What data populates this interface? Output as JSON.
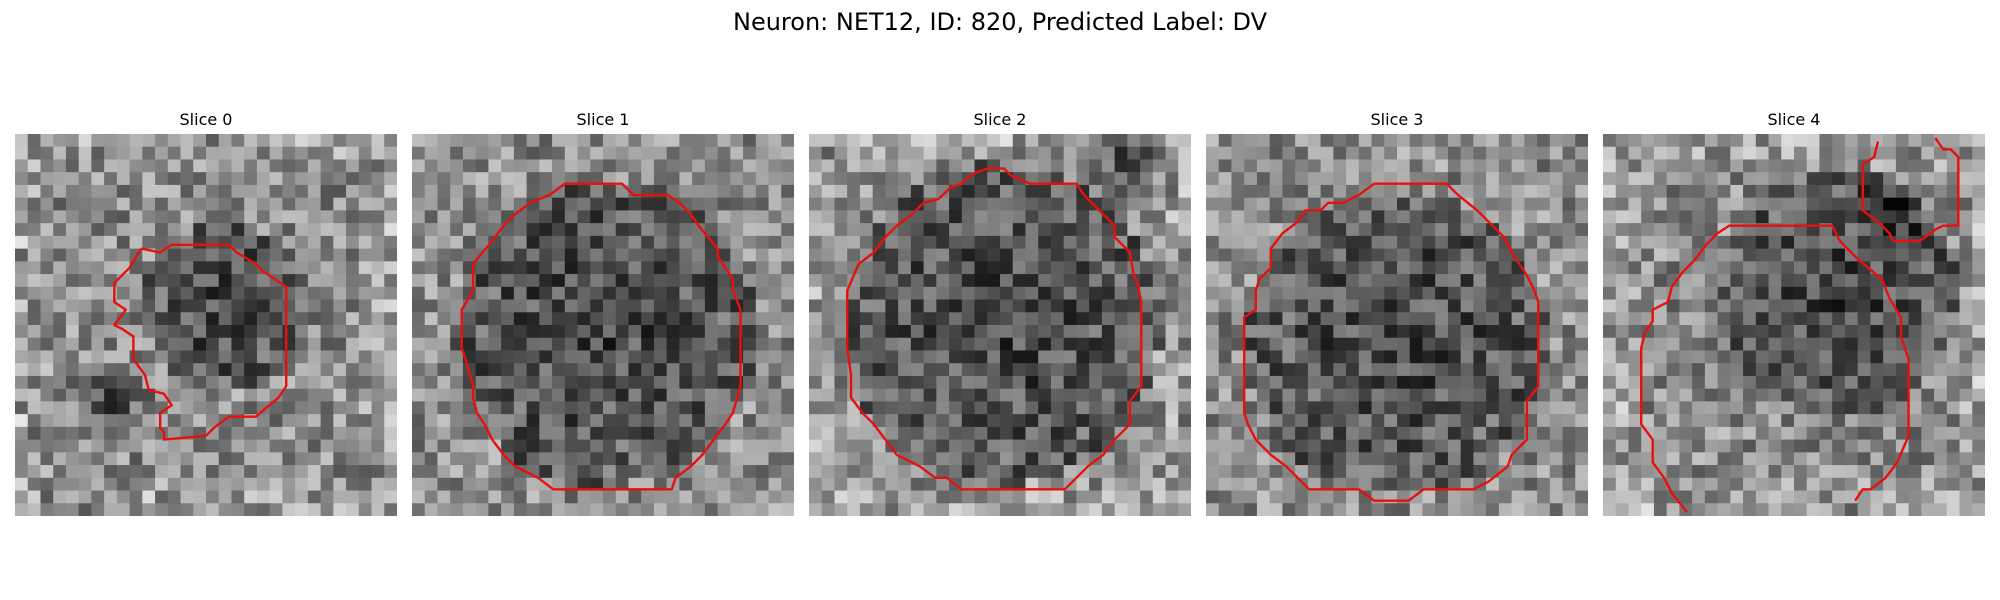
{
  "figure": {
    "title": "Neuron: NET12, ID: 820, Predicted Label: DV"
  },
  "panels": [
    {
      "title": "Slice 0",
      "seed": 11,
      "dark_center": [
        0.55,
        0.45
      ],
      "dark_radius": 0.22,
      "extra_dark": [
        0.25,
        0.7
      ],
      "bright_edges": true,
      "contour": [
        [
          0.33,
          0.3
        ],
        [
          0.38,
          0.31
        ],
        [
          0.41,
          0.29
        ],
        [
          0.56,
          0.29
        ],
        [
          0.58,
          0.31
        ],
        [
          0.63,
          0.34
        ],
        [
          0.65,
          0.36
        ],
        [
          0.71,
          0.4
        ],
        [
          0.71,
          0.66
        ],
        [
          0.69,
          0.69
        ],
        [
          0.63,
          0.74
        ],
        [
          0.56,
          0.74
        ],
        [
          0.52,
          0.77
        ],
        [
          0.5,
          0.79
        ],
        [
          0.39,
          0.8
        ],
        [
          0.39,
          0.78
        ],
        [
          0.38,
          0.77
        ],
        [
          0.38,
          0.73
        ],
        [
          0.41,
          0.71
        ],
        [
          0.39,
          0.68
        ],
        [
          0.35,
          0.67
        ],
        [
          0.34,
          0.63
        ],
        [
          0.31,
          0.59
        ],
        [
          0.31,
          0.53
        ],
        [
          0.28,
          0.51
        ],
        [
          0.26,
          0.5
        ],
        [
          0.29,
          0.46
        ],
        [
          0.26,
          0.44
        ],
        [
          0.26,
          0.39
        ],
        [
          0.3,
          0.35
        ],
        [
          0.33,
          0.3
        ]
      ]
    },
    {
      "title": "Slice 1",
      "seed": 23,
      "dark_center": [
        0.5,
        0.52
      ],
      "dark_radius": 0.4,
      "extra_dark": null,
      "bright_edges": false,
      "contour": [
        [
          0.36,
          0.16
        ],
        [
          0.4,
          0.13
        ],
        [
          0.55,
          0.13
        ],
        [
          0.58,
          0.16
        ],
        [
          0.67,
          0.16
        ],
        [
          0.7,
          0.18
        ],
        [
          0.73,
          0.21
        ],
        [
          0.75,
          0.24
        ],
        [
          0.8,
          0.3
        ],
        [
          0.8,
          0.32
        ],
        [
          0.84,
          0.38
        ],
        [
          0.84,
          0.41
        ],
        [
          0.86,
          0.46
        ],
        [
          0.86,
          0.66
        ],
        [
          0.84,
          0.73
        ],
        [
          0.82,
          0.76
        ],
        [
          0.76,
          0.84
        ],
        [
          0.73,
          0.87
        ],
        [
          0.69,
          0.9
        ],
        [
          0.68,
          0.93
        ],
        [
          0.37,
          0.93
        ],
        [
          0.33,
          0.9
        ],
        [
          0.27,
          0.87
        ],
        [
          0.24,
          0.84
        ],
        [
          0.21,
          0.8
        ],
        [
          0.19,
          0.76
        ],
        [
          0.17,
          0.73
        ],
        [
          0.16,
          0.69
        ],
        [
          0.16,
          0.66
        ],
        [
          0.14,
          0.59
        ],
        [
          0.13,
          0.56
        ],
        [
          0.13,
          0.46
        ],
        [
          0.16,
          0.41
        ],
        [
          0.16,
          0.34
        ],
        [
          0.21,
          0.28
        ],
        [
          0.24,
          0.24
        ],
        [
          0.27,
          0.21
        ],
        [
          0.31,
          0.18
        ],
        [
          0.36,
          0.16
        ]
      ]
    },
    {
      "title": "Slice 2",
      "seed": 37,
      "dark_center": [
        0.5,
        0.5
      ],
      "dark_radius": 0.42,
      "extra_dark": [
        0.83,
        0.05
      ],
      "bright_edges": true,
      "contour": [
        [
          0.34,
          0.17
        ],
        [
          0.37,
          0.14
        ],
        [
          0.4,
          0.13
        ],
        [
          0.42,
          0.11
        ],
        [
          0.44,
          0.1
        ],
        [
          0.47,
          0.09
        ],
        [
          0.51,
          0.09
        ],
        [
          0.53,
          0.11
        ],
        [
          0.58,
          0.13
        ],
        [
          0.7,
          0.13
        ],
        [
          0.72,
          0.16
        ],
        [
          0.76,
          0.2
        ],
        [
          0.8,
          0.24
        ],
        [
          0.8,
          0.27
        ],
        [
          0.84,
          0.31
        ],
        [
          0.85,
          0.37
        ],
        [
          0.86,
          0.39
        ],
        [
          0.87,
          0.44
        ],
        [
          0.87,
          0.66
        ],
        [
          0.84,
          0.7
        ],
        [
          0.84,
          0.76
        ],
        [
          0.8,
          0.8
        ],
        [
          0.77,
          0.84
        ],
        [
          0.73,
          0.87
        ],
        [
          0.7,
          0.9
        ],
        [
          0.67,
          0.93
        ],
        [
          0.57,
          0.93
        ],
        [
          0.4,
          0.93
        ],
        [
          0.36,
          0.9
        ],
        [
          0.33,
          0.9
        ],
        [
          0.29,
          0.87
        ],
        [
          0.23,
          0.84
        ],
        [
          0.2,
          0.8
        ],
        [
          0.17,
          0.76
        ],
        [
          0.14,
          0.73
        ],
        [
          0.11,
          0.69
        ],
        [
          0.11,
          0.63
        ],
        [
          0.1,
          0.56
        ],
        [
          0.1,
          0.41
        ],
        [
          0.13,
          0.34
        ],
        [
          0.17,
          0.31
        ],
        [
          0.2,
          0.27
        ],
        [
          0.23,
          0.24
        ],
        [
          0.27,
          0.21
        ],
        [
          0.3,
          0.18
        ],
        [
          0.34,
          0.17
        ]
      ]
    },
    {
      "title": "Slice 3",
      "seed": 41,
      "dark_center": [
        0.5,
        0.55
      ],
      "dark_radius": 0.4,
      "extra_dark": null,
      "bright_edges": false,
      "contour": [
        [
          0.36,
          0.18
        ],
        [
          0.4,
          0.16
        ],
        [
          0.44,
          0.13
        ],
        [
          0.53,
          0.13
        ],
        [
          0.63,
          0.13
        ],
        [
          0.66,
          0.16
        ],
        [
          0.71,
          0.2
        ],
        [
          0.75,
          0.24
        ],
        [
          0.78,
          0.27
        ],
        [
          0.8,
          0.31
        ],
        [
          0.82,
          0.34
        ],
        [
          0.84,
          0.37
        ],
        [
          0.86,
          0.41
        ],
        [
          0.87,
          0.44
        ],
        [
          0.87,
          0.56
        ],
        [
          0.87,
          0.66
        ],
        [
          0.84,
          0.7
        ],
        [
          0.84,
          0.74
        ],
        [
          0.84,
          0.8
        ],
        [
          0.8,
          0.84
        ],
        [
          0.79,
          0.87
        ],
        [
          0.74,
          0.91
        ],
        [
          0.7,
          0.93
        ],
        [
          0.57,
          0.93
        ],
        [
          0.53,
          0.96
        ],
        [
          0.44,
          0.96
        ],
        [
          0.4,
          0.93
        ],
        [
          0.27,
          0.93
        ],
        [
          0.24,
          0.9
        ],
        [
          0.21,
          0.87
        ],
        [
          0.17,
          0.84
        ],
        [
          0.13,
          0.8
        ],
        [
          0.11,
          0.76
        ],
        [
          0.1,
          0.73
        ],
        [
          0.1,
          0.48
        ],
        [
          0.13,
          0.46
        ],
        [
          0.13,
          0.41
        ],
        [
          0.14,
          0.38
        ],
        [
          0.17,
          0.35
        ],
        [
          0.17,
          0.3
        ],
        [
          0.2,
          0.26
        ],
        [
          0.24,
          0.23
        ],
        [
          0.26,
          0.2
        ],
        [
          0.3,
          0.2
        ],
        [
          0.32,
          0.18
        ],
        [
          0.36,
          0.18
        ]
      ]
    },
    {
      "title": "Slice 4",
      "seed": 53,
      "dark_center": [
        0.62,
        0.42
      ],
      "dark_radius": 0.32,
      "extra_dark": [
        0.75,
        0.2
      ],
      "bright_edges": true,
      "contour": [
        [
          0.72,
          0.02
        ],
        [
          0.71,
          0.06
        ],
        [
          0.68,
          0.08
        ],
        [
          0.68,
          0.2
        ],
        [
          0.72,
          0.23
        ],
        [
          0.75,
          0.26
        ],
        [
          0.76,
          0.28
        ],
        [
          0.83,
          0.28
        ],
        [
          0.87,
          0.25
        ],
        [
          0.89,
          0.24
        ],
        [
          0.93,
          0.24
        ],
        [
          0.93,
          0.06
        ],
        [
          0.91,
          0.04
        ],
        [
          0.89,
          0.04
        ],
        [
          0.87,
          0.01
        ]
      ]
    },
    {
      "title": "",
      "seed": 0,
      "dark_center": null,
      "dark_radius": 0,
      "extra_dark": null,
      "bright_edges": false,
      "contour": [
        [
          0.22,
          0.99
        ],
        [
          0.18,
          0.94
        ],
        [
          0.16,
          0.9
        ],
        [
          0.13,
          0.86
        ],
        [
          0.13,
          0.8
        ],
        [
          0.1,
          0.76
        ],
        [
          0.1,
          0.56
        ],
        [
          0.11,
          0.52
        ],
        [
          0.13,
          0.49
        ],
        [
          0.13,
          0.46
        ],
        [
          0.17,
          0.44
        ],
        [
          0.18,
          0.4
        ],
        [
          0.21,
          0.36
        ],
        [
          0.24,
          0.33
        ],
        [
          0.27,
          0.29
        ],
        [
          0.3,
          0.26
        ],
        [
          0.33,
          0.24
        ],
        [
          0.4,
          0.24
        ],
        [
          0.6,
          0.24
        ],
        [
          0.62,
          0.28
        ],
        [
          0.67,
          0.33
        ],
        [
          0.73,
          0.38
        ],
        [
          0.75,
          0.43
        ],
        [
          0.78,
          0.48
        ],
        [
          0.78,
          0.53
        ],
        [
          0.79,
          0.56
        ],
        [
          0.8,
          0.59
        ],
        [
          0.8,
          0.79
        ],
        [
          0.77,
          0.86
        ],
        [
          0.74,
          0.9
        ],
        [
          0.7,
          0.93
        ],
        [
          0.68,
          0.93
        ],
        [
          0.66,
          0.96
        ]
      ]
    }
  ]
}
